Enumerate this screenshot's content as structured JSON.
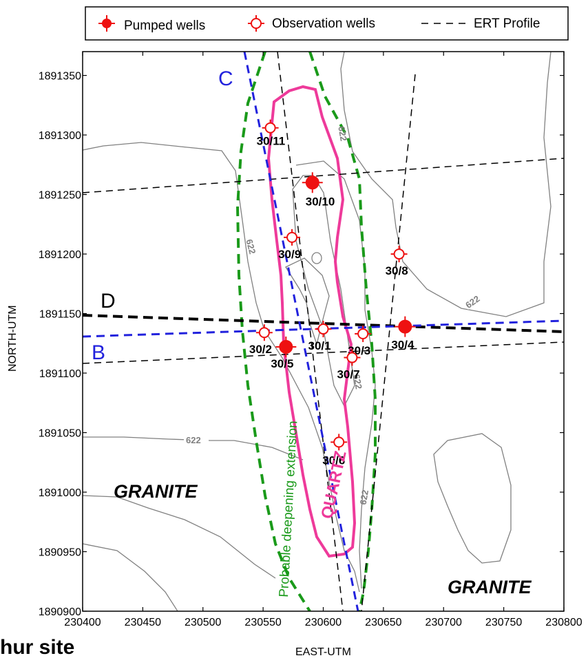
{
  "legend": {
    "pumped": "Pumped wells",
    "observation": "Observation wells",
    "ert": "ERT Profile"
  },
  "axes": {
    "xlabel": "EAST-UTM",
    "ylabel": "NORTH-UTM",
    "xlim": [
      230400,
      230800
    ],
    "ylim": [
      1890900,
      1891370
    ],
    "xticks": [
      "230400",
      "230450",
      "230500",
      "230550",
      "230600",
      "230650",
      "230700",
      "230750",
      "230800"
    ],
    "yticks": [
      "1890900",
      "1890950",
      "1891000",
      "1891050",
      "1891100",
      "1891150",
      "1891200",
      "1891250",
      "1891300",
      "1891350"
    ]
  },
  "caption": "hur site",
  "regions": {
    "granite_left": "GRANITE",
    "granite_right": "GRANITE",
    "quartz": "QUARTZ"
  },
  "annotations": {
    "deepening": "Probable deepening extension"
  },
  "profiles": {
    "B": "B",
    "C": "C",
    "D": "D"
  },
  "contour_labels": [
    "622",
    "622",
    "622",
    "622",
    "622",
    "622"
  ],
  "colors": {
    "pumped": "#ee1111",
    "observation": "#ee1111",
    "quartz": "#ee3a9a",
    "deepening": "#1a9a1a",
    "profile_blue": "#2222dd",
    "contour": "#808080"
  },
  "wells": [
    {
      "name": "30/11",
      "type": "observation",
      "x": 230556,
      "y": 1891306
    },
    {
      "name": "30/10",
      "type": "pumped",
      "x": 230591,
      "y": 1891260
    },
    {
      "name": "30/9",
      "type": "observation",
      "x": 230574,
      "y": 1891214
    },
    {
      "name": "30/8",
      "type": "observation",
      "x": 230663,
      "y": 1891200
    },
    {
      "name": "30/4",
      "type": "pumped",
      "x": 230668,
      "y": 1891139
    },
    {
      "name": "30/2",
      "type": "observation",
      "x": 230551,
      "y": 1891134
    },
    {
      "name": "30/5",
      "type": "pumped",
      "x": 230569,
      "y": 1891122
    },
    {
      "name": "30/1",
      "type": "observation",
      "x": 230600,
      "y": 1891137
    },
    {
      "name": "30/3",
      "type": "observation",
      "x": 230633,
      "y": 1891133
    },
    {
      "name": "30/7",
      "type": "observation",
      "x": 230624,
      "y": 1891113
    },
    {
      "name": "30/6",
      "type": "observation",
      "x": 230613,
      "y": 1891042
    }
  ]
}
